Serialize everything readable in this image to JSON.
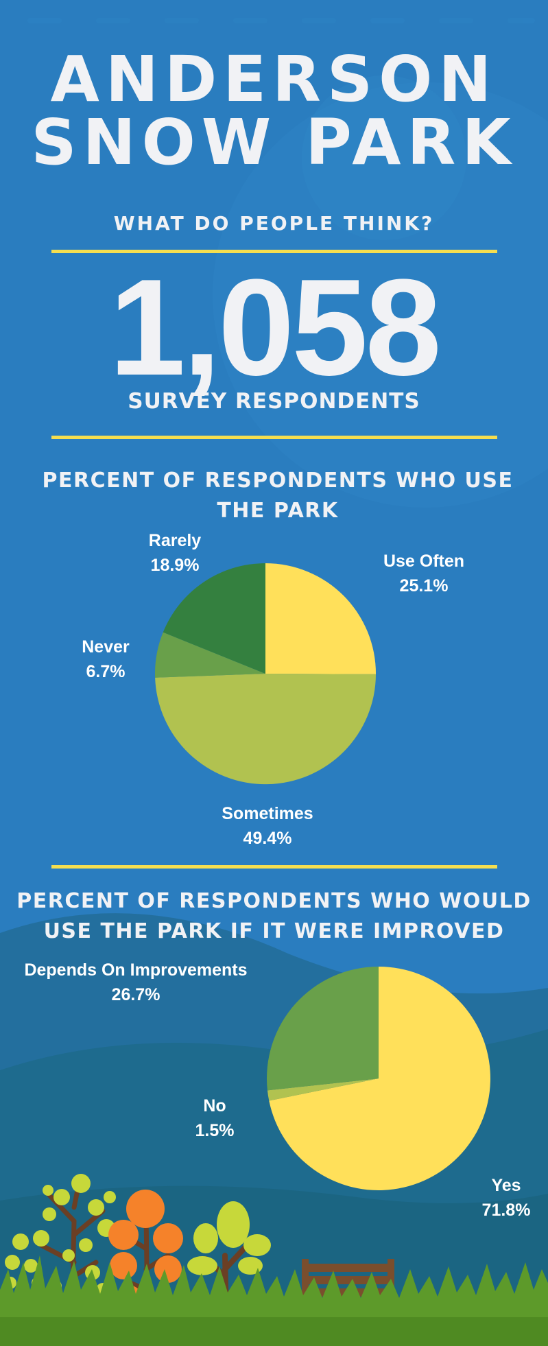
{
  "header": {
    "title_line1": "ANDERSON",
    "title_line2": "SNOW PARK",
    "subtitle": "WHAT DO PEOPLE THINK?"
  },
  "stat": {
    "value": "1,058",
    "label": "SURVEY RESPONDENTS"
  },
  "colors": {
    "background": "#2a7dbf",
    "rule": "#f5de4f",
    "text": "#f1f2f5"
  },
  "chart_data": [
    {
      "type": "pie",
      "title": "PERCENT OF RESPONDENTS WHO USE THE PARK",
      "slices": [
        {
          "label": "Use Often",
          "value": 25.1,
          "display": "25.1%",
          "color": "#ffe05a"
        },
        {
          "label": "Sometimes",
          "value": 49.4,
          "display": "49.4%",
          "color": "#b1c250"
        },
        {
          "label": "Never",
          "value": 6.7,
          "display": "6.7%",
          "color": "#69a04a"
        },
        {
          "label": "Rarely",
          "value": 18.9,
          "display": "18.9%",
          "color": "#34803f"
        }
      ]
    },
    {
      "type": "pie",
      "title": "PERCENT OF RESPONDENTS WHO WOULD USE THE PARK IF IT WERE IMPROVED",
      "slices": [
        {
          "label": "Yes",
          "value": 71.8,
          "display": "71.8%",
          "color": "#ffe05a"
        },
        {
          "label": "No",
          "value": 1.5,
          "display": "1.5%",
          "color": "#b1c250"
        },
        {
          "label": "Depends On Improvements",
          "value": 26.7,
          "display": "26.7%",
          "color": "#69a04a"
        }
      ]
    }
  ]
}
